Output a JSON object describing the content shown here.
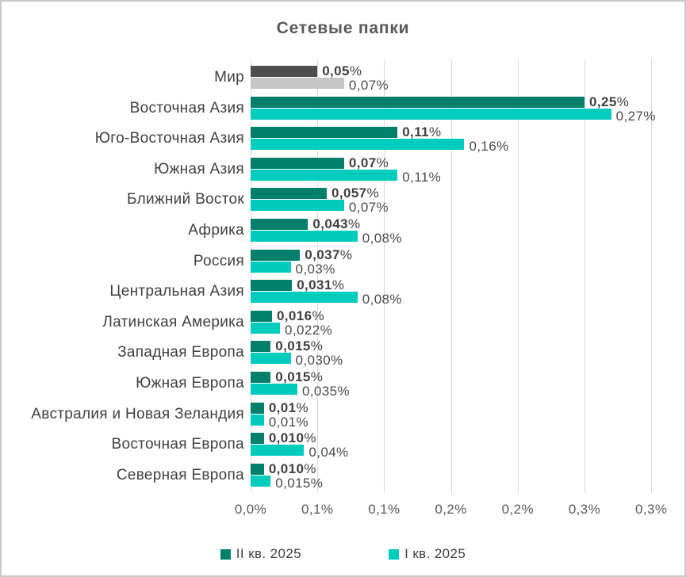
{
  "title": "Сетевые папки",
  "colors": {
    "series_q2": "#00806a",
    "series_q1": "#00ccbe",
    "world_q2": "#4d4d4d",
    "world_q1": "#c6c6c6",
    "gridline": "#d9d9d9",
    "frame_border": "#c9c9c9",
    "title_text": "#595959",
    "axis_text": "#595959",
    "category_text": "#404040"
  },
  "legend": {
    "items": [
      {
        "label": "II кв. 2025",
        "color": "#00806a"
      },
      {
        "label": "I кв. 2025",
        "color": "#00ccbe"
      }
    ]
  },
  "x_axis": {
    "tick_labels": [
      "0,0%",
      "0,1%",
      "0,1%",
      "0,2%",
      "0,2%",
      "0,3%",
      "0,3%"
    ],
    "min": 0,
    "max": 0.3,
    "step": 0.05,
    "unit": "%"
  },
  "chart_data": {
    "type": "bar",
    "orientation": "horizontal",
    "title": "Сетевые папки",
    "xlabel": "",
    "ylabel": "",
    "xlim": [
      0,
      0.3
    ],
    "grid": true,
    "legend_position": "bottom",
    "categories": [
      "Мир",
      "Восточная Азия",
      "Юго-Восточная Азия",
      "Южная Азия",
      "Ближний Восток",
      "Африка",
      "Россия",
      "Центральная Азия",
      "Латинская Америка",
      "Западная Европа",
      "Южная Европа",
      "Австралия и Новая Зеландия",
      "Восточная Европа",
      "Северная Европа"
    ],
    "series": [
      {
        "name": "II кв. 2025",
        "color": "#00806a",
        "values": [
          0.05,
          0.25,
          0.11,
          0.07,
          0.057,
          0.043,
          0.037,
          0.031,
          0.016,
          0.015,
          0.015,
          0.01,
          0.01,
          0.01
        ],
        "labels": [
          "0,05%",
          "0,25%",
          "0,11%",
          "0,07%",
          "0,057%",
          "0,043%",
          "0,037%",
          "0,031%",
          "0,016%",
          "0,015%",
          "0,015%",
          "0,01%",
          "0,010%",
          "0,010%"
        ]
      },
      {
        "name": "I кв. 2025",
        "color": "#00ccbe",
        "values": [
          0.07,
          0.27,
          0.16,
          0.11,
          0.07,
          0.08,
          0.03,
          0.08,
          0.022,
          0.03,
          0.035,
          0.01,
          0.04,
          0.015
        ],
        "labels": [
          "0,07%",
          "0,27%",
          "0,16%",
          "0,11%",
          "0,07%",
          "0,08%",
          "0,03%",
          "0,08%",
          "0,022%",
          "0,030%",
          "0,035%",
          "0,01%",
          "0,04%",
          "0,015%"
        ]
      }
    ],
    "special_row_colors": {
      "row_index": 0,
      "q2_color": "#4d4d4d",
      "q1_color": "#c6c6c6"
    }
  }
}
